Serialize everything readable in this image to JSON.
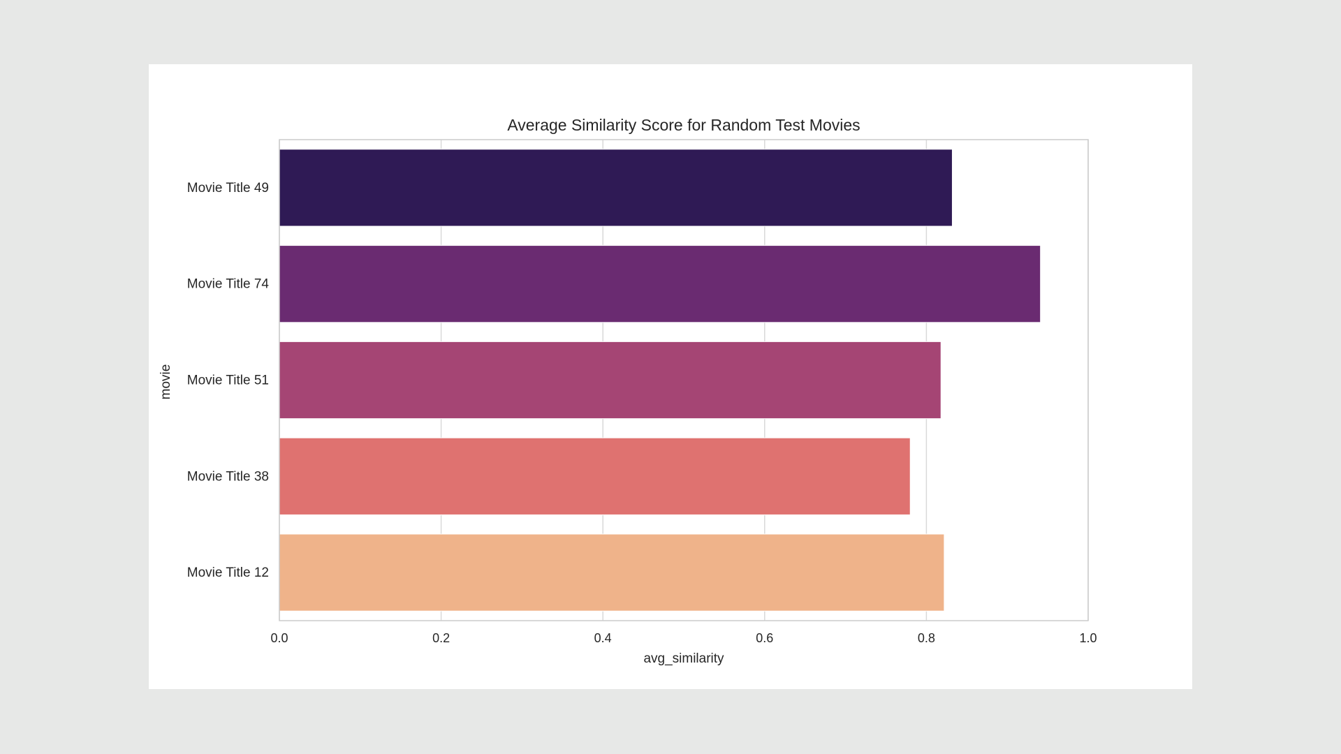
{
  "chart_data": {
    "type": "bar",
    "orientation": "horizontal",
    "title": "Average Similarity Score for Random Test Movies",
    "xlabel": "avg_similarity",
    "ylabel": "movie",
    "categories": [
      "Movie Title 49",
      "Movie Title 74",
      "Movie Title 51",
      "Movie Title 38",
      "Movie Title 12"
    ],
    "values": [
      0.832,
      0.941,
      0.818,
      0.78,
      0.822
    ],
    "colors": [
      "#2f1a55",
      "#6a2b71",
      "#a54574",
      "#df7270",
      "#efb38a"
    ],
    "xlim": [
      0.0,
      1.0
    ],
    "xticks": [
      "0.0",
      "0.2",
      "0.4",
      "0.6",
      "0.8",
      "1.0"
    ],
    "grid": "vertical",
    "legend": "none"
  }
}
